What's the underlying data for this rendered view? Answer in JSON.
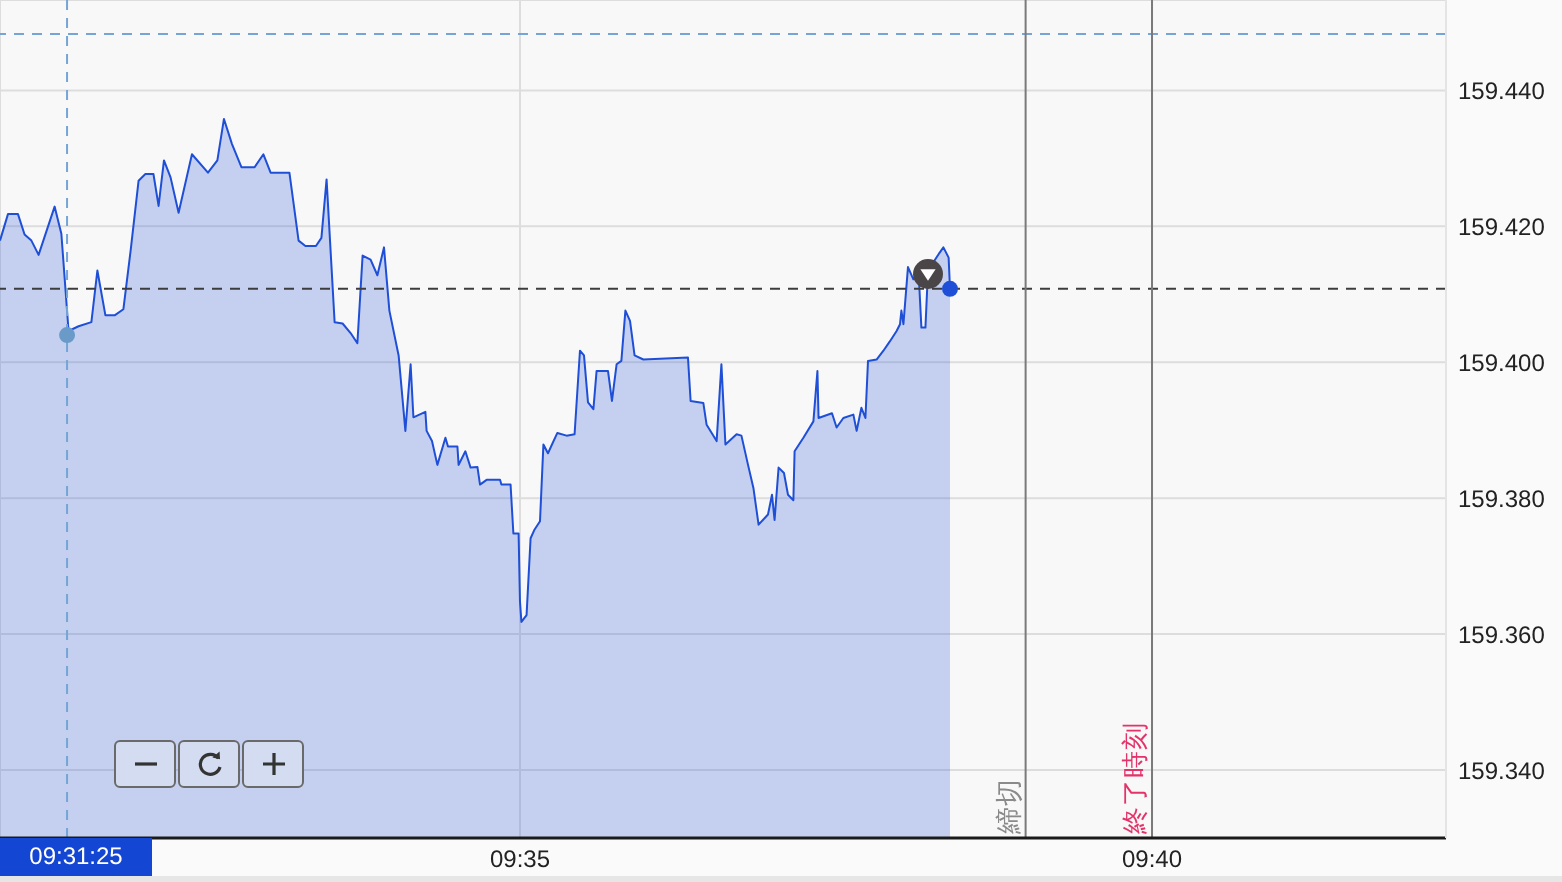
{
  "chart_data": {
    "type": "area",
    "xlim": [
      9.51477,
      9.70543
    ],
    "xticks": [
      {
        "value": 9.583333,
        "label": "09:35"
      },
      {
        "value": 9.666667,
        "label": "09:40"
      }
    ],
    "ylim": [
      159.33,
      159.4533
    ],
    "yticks": [
      {
        "value": 159.34,
        "label": "159.340"
      },
      {
        "value": 159.36,
        "label": "159.360"
      },
      {
        "value": 159.38,
        "label": "159.380"
      },
      {
        "value": 159.4,
        "label": "159.400"
      },
      {
        "value": 159.42,
        "label": "159.420"
      },
      {
        "value": 159.44,
        "label": "159.440"
      }
    ],
    "grid": true,
    "series": [
      {
        "color": "#1f4fd6",
        "x": [
          9.51477,
          9.51582,
          9.51714,
          9.51801,
          9.51891,
          9.51986,
          9.52197,
          9.52286,
          9.52381,
          9.52513,
          9.52682,
          9.52761,
          9.52867,
          9.52988,
          9.53104,
          9.53199,
          9.53304,
          9.53394,
          9.535,
          9.53568,
          9.53639,
          9.53726,
          9.53832,
          9.54008,
          9.54219,
          9.54343,
          9.5443,
          9.54536,
          9.5466,
          9.54834,
          9.5495,
          9.55045,
          9.55293,
          9.55414,
          9.55504,
          9.55643,
          9.55715,
          9.55783,
          9.55889,
          9.55994,
          9.561,
          9.56189,
          9.56258,
          9.56363,
          9.56453,
          9.5654,
          9.56611,
          9.56733,
          9.56822,
          9.56891,
          9.56928,
          9.57086,
          9.57102,
          9.57173,
          9.57244,
          9.5735,
          9.57384,
          9.57508,
          9.57524,
          9.57613,
          9.57682,
          9.57772,
          9.57806,
          9.57893,
          9.5807,
          9.58088,
          9.58209,
          9.58246,
          9.58315,
          9.58333,
          9.58352,
          9.5842,
          9.58473,
          9.58526,
          9.58597,
          9.58642,
          9.58702,
          9.58755,
          9.58826,
          9.58948,
          9.59053,
          9.59124,
          9.59177,
          9.5923,
          9.59301,
          9.59343,
          9.59494,
          9.59546,
          9.59607,
          9.5967,
          9.59723,
          9.59784,
          9.59844,
          9.5996,
          9.60548,
          9.60583,
          9.60751,
          9.60794,
          9.60926,
          9.60989,
          9.61042,
          9.61189,
          9.61253,
          9.6134,
          9.61411,
          9.61479,
          9.61603,
          9.61656,
          9.6169,
          9.61743,
          9.61814,
          9.61867,
          9.61938,
          9.61954,
          9.6207,
          9.62202,
          9.62255,
          9.6227,
          9.62447,
          9.62508,
          9.62597,
          9.62729,
          9.62772,
          9.62835,
          9.62888,
          9.62922,
          9.63035,
          9.63125,
          9.63212,
          9.63299,
          9.63344,
          9.63362,
          9.63389,
          9.63449,
          9.6352,
          9.63589,
          9.63626,
          9.63679,
          9.63713,
          9.63853,
          9.63916,
          9.63985,
          9.64003
        ],
        "values": [
          159.4179,
          159.4218,
          159.4218,
          159.4188,
          159.4179,
          159.4158,
          159.4229,
          159.4189,
          159.4046,
          159.4053,
          159.4059,
          159.4135,
          159.4069,
          159.4069,
          159.4078,
          159.4164,
          159.4267,
          159.4277,
          159.4277,
          159.423,
          159.4297,
          159.4272,
          159.422,
          159.4306,
          159.4279,
          159.4297,
          159.4358,
          159.4321,
          159.4287,
          159.4287,
          159.4306,
          159.4279,
          159.4279,
          159.4179,
          159.4171,
          159.4171,
          159.4183,
          159.4269,
          159.4059,
          159.4057,
          159.4043,
          159.4028,
          159.4157,
          159.4151,
          159.4128,
          159.4169,
          159.4076,
          159.401,
          159.3899,
          159.3997,
          159.3919,
          159.3927,
          159.3899,
          159.3884,
          159.3849,
          159.3889,
          159.3876,
          159.3876,
          159.3849,
          159.3869,
          159.3845,
          159.3846,
          159.382,
          159.3827,
          159.3827,
          159.382,
          159.382,
          159.3748,
          159.3748,
          159.3648,
          159.3618,
          159.3628,
          159.3741,
          159.3754,
          159.3766,
          159.3879,
          159.3866,
          159.3879,
          159.3896,
          159.3892,
          159.3894,
          159.4017,
          159.401,
          159.3941,
          159.3931,
          159.3987,
          159.3987,
          159.3943,
          159.3997,
          159.4002,
          159.4076,
          159.4061,
          159.401,
          159.4004,
          159.4007,
          159.3943,
          159.394,
          159.3908,
          159.3884,
          159.3997,
          159.3879,
          159.3894,
          159.3892,
          159.3849,
          159.3815,
          159.3761,
          159.3776,
          159.3805,
          159.3768,
          159.3845,
          159.3837,
          159.3805,
          159.3797,
          159.3869,
          159.3889,
          159.3913,
          159.3987,
          159.3918,
          159.3925,
          159.3904,
          159.3918,
          159.3923,
          159.3899,
          159.3933,
          159.3918,
          159.4002,
          159.4004,
          159.4017,
          159.4031,
          159.4046,
          159.4056,
          159.4076,
          159.4056,
          159.414,
          159.4122,
          159.4132,
          159.4051,
          159.4051,
          159.4135,
          159.4159,
          159.4169,
          159.4154,
          159.4108
        ]
      },
      {
        "type": "scatter",
        "color": "#6a9bc8",
        "x": [
          9.523611
        ],
        "values": [
          159.404
        ]
      },
      {
        "type": "scatter",
        "color": "#1f4fd6",
        "x": [
          9.64003
        ],
        "values": [
          159.4108
        ]
      }
    ],
    "ref_lines": [
      {
        "axis": "y",
        "value": 159.4483,
        "color": "#74a5d6",
        "line_style": "dashed"
      },
      {
        "axis": "y",
        "value": 159.4108,
        "color": "#3c3c3c",
        "line_style": "dashed"
      },
      {
        "axis": "x",
        "value": 9.523611,
        "color": "#74a5d6",
        "line_style": "dashed"
      },
      {
        "axis": "x",
        "value": 9.65,
        "label": "締切",
        "color": "#7a7a7a",
        "line_style": "solid"
      },
      {
        "axis": "x",
        "value": 9.666667,
        "label": "終了時刻",
        "color": "#7a7a7a",
        "line_style": "solid"
      }
    ],
    "annotations": [
      "09:31:25"
    ]
  }
}
